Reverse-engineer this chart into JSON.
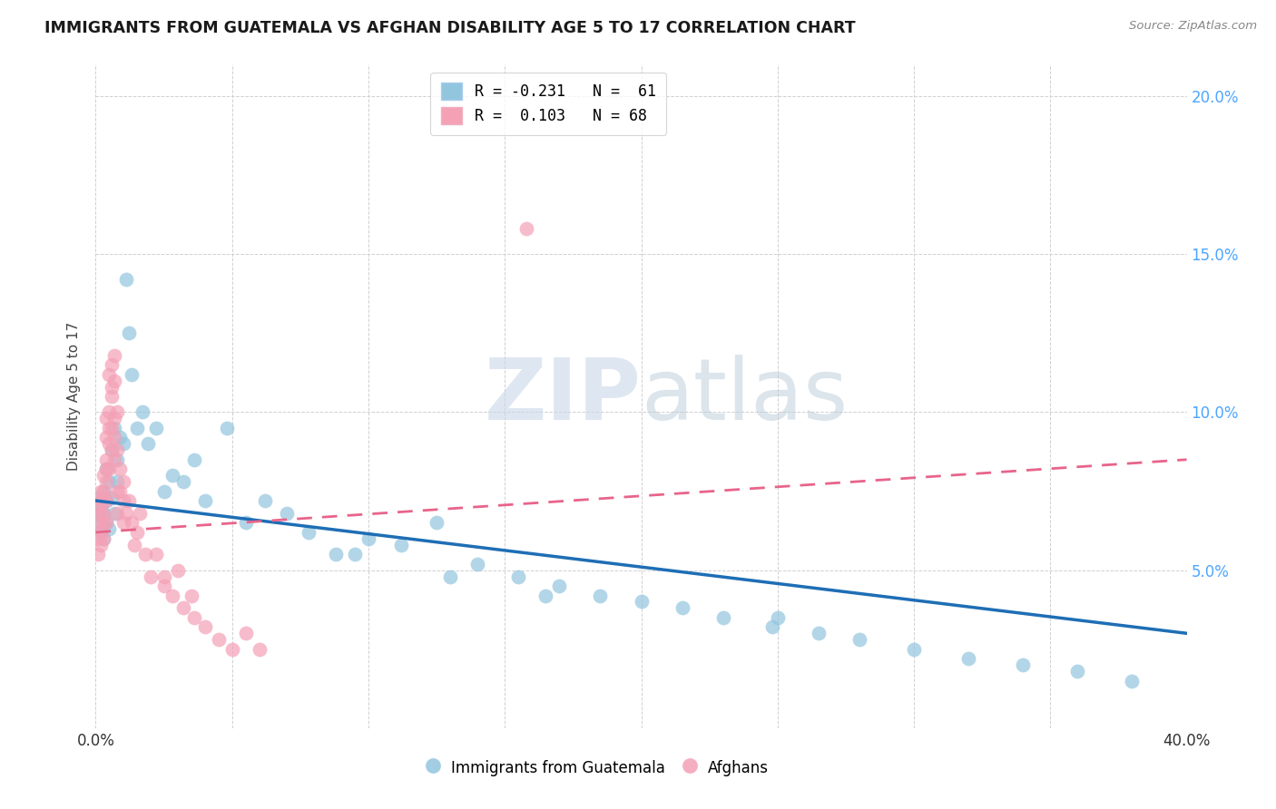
{
  "title": "IMMIGRANTS FROM GUATEMALA VS AFGHAN DISABILITY AGE 5 TO 17 CORRELATION CHART",
  "source": "Source: ZipAtlas.com",
  "ylabel": "Disability Age 5 to 17",
  "xlim": [
    0.0,
    0.4
  ],
  "ylim": [
    0.0,
    0.21
  ],
  "legend_blue_label": "R = -0.231   N =  61",
  "legend_pink_label": "R =  0.103   N = 68",
  "blue_color": "#92c5de",
  "pink_color": "#f4a0b5",
  "blue_line_color": "#1e6eb5",
  "pink_line_color": "#e8648a",
  "watermark_zip": "ZIP",
  "watermark_atlas": "atlas",
  "background_color": "#ffffff",
  "grid_color": "#d0d0d0",
  "blue_trend_x": [
    0.0,
    0.4
  ],
  "blue_trend_y": [
    0.072,
    0.03
  ],
  "pink_trend_x": [
    0.0,
    0.4
  ],
  "pink_trend_y": [
    0.062,
    0.085
  ],
  "guatemala_x": [
    0.001,
    0.001,
    0.002,
    0.002,
    0.002,
    0.003,
    0.003,
    0.003,
    0.004,
    0.004,
    0.004,
    0.005,
    0.005,
    0.006,
    0.006,
    0.007,
    0.007,
    0.008,
    0.008,
    0.009,
    0.01,
    0.011,
    0.012,
    0.013,
    0.015,
    0.017,
    0.019,
    0.022,
    0.025,
    0.028,
    0.032,
    0.036,
    0.04,
    0.048,
    0.055,
    0.062,
    0.07,
    0.078,
    0.088,
    0.1,
    0.112,
    0.125,
    0.14,
    0.155,
    0.17,
    0.185,
    0.2,
    0.215,
    0.23,
    0.248,
    0.265,
    0.28,
    0.3,
    0.32,
    0.34,
    0.36,
    0.38,
    0.095,
    0.13,
    0.165,
    0.25
  ],
  "guatemala_y": [
    0.068,
    0.073,
    0.065,
    0.07,
    0.062,
    0.075,
    0.068,
    0.06,
    0.082,
    0.072,
    0.065,
    0.078,
    0.063,
    0.088,
    0.073,
    0.095,
    0.068,
    0.085,
    0.078,
    0.092,
    0.09,
    0.142,
    0.125,
    0.112,
    0.095,
    0.1,
    0.09,
    0.095,
    0.075,
    0.08,
    0.078,
    0.085,
    0.072,
    0.095,
    0.065,
    0.072,
    0.068,
    0.062,
    0.055,
    0.06,
    0.058,
    0.065,
    0.052,
    0.048,
    0.045,
    0.042,
    0.04,
    0.038,
    0.035,
    0.032,
    0.03,
    0.028,
    0.025,
    0.022,
    0.02,
    0.018,
    0.015,
    0.055,
    0.048,
    0.042,
    0.035
  ],
  "afghan_x": [
    0.001,
    0.001,
    0.001,
    0.001,
    0.002,
    0.002,
    0.002,
    0.002,
    0.002,
    0.003,
    0.003,
    0.003,
    0.003,
    0.003,
    0.003,
    0.004,
    0.004,
    0.004,
    0.004,
    0.004,
    0.004,
    0.004,
    0.005,
    0.005,
    0.005,
    0.005,
    0.005,
    0.006,
    0.006,
    0.006,
    0.006,
    0.006,
    0.007,
    0.007,
    0.007,
    0.007,
    0.007,
    0.008,
    0.008,
    0.008,
    0.008,
    0.009,
    0.009,
    0.01,
    0.01,
    0.01,
    0.011,
    0.012,
    0.013,
    0.014,
    0.015,
    0.016,
    0.018,
    0.02,
    0.022,
    0.025,
    0.028,
    0.032,
    0.036,
    0.04,
    0.045,
    0.05,
    0.055,
    0.06,
    0.025,
    0.03,
    0.035,
    0.158
  ],
  "afghan_y": [
    0.06,
    0.065,
    0.055,
    0.07,
    0.075,
    0.068,
    0.058,
    0.062,
    0.072,
    0.08,
    0.065,
    0.073,
    0.068,
    0.06,
    0.075,
    0.085,
    0.078,
    0.072,
    0.065,
    0.092,
    0.082,
    0.098,
    0.09,
    0.082,
    0.1,
    0.112,
    0.095,
    0.115,
    0.105,
    0.095,
    0.088,
    0.108,
    0.098,
    0.085,
    0.11,
    0.092,
    0.118,
    0.075,
    0.088,
    0.1,
    0.068,
    0.075,
    0.082,
    0.065,
    0.072,
    0.078,
    0.068,
    0.072,
    0.065,
    0.058,
    0.062,
    0.068,
    0.055,
    0.048,
    0.055,
    0.045,
    0.042,
    0.038,
    0.035,
    0.032,
    0.028,
    0.025,
    0.03,
    0.025,
    0.048,
    0.05,
    0.042,
    0.158
  ]
}
